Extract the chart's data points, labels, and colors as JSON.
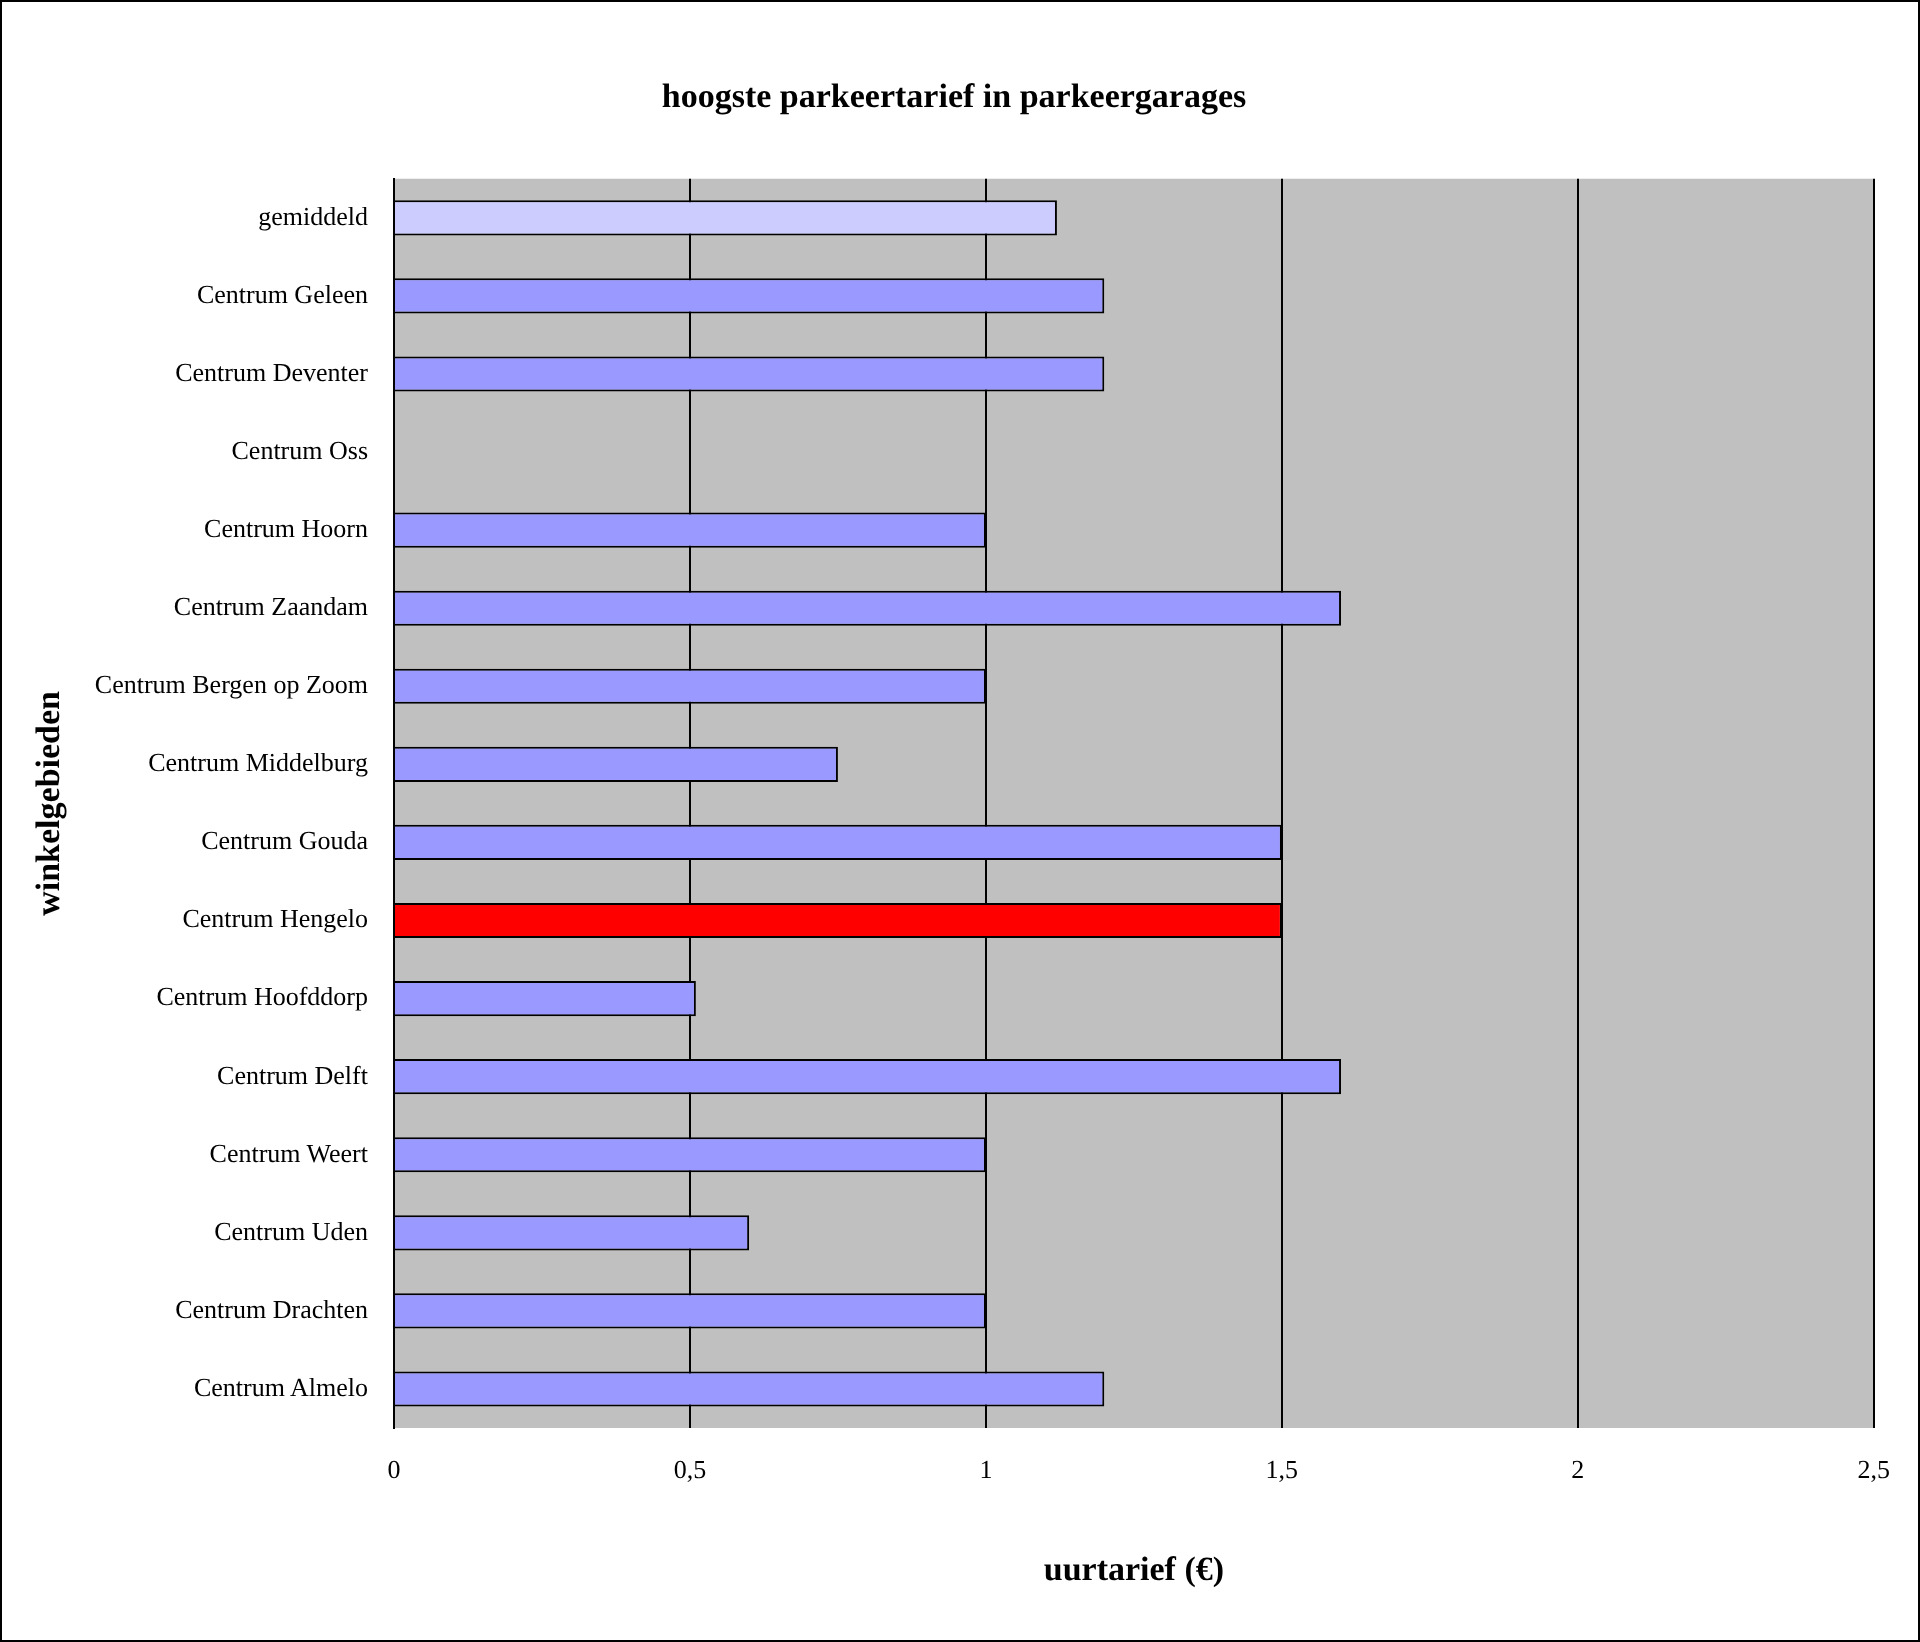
{
  "chart_data": {
    "type": "bar",
    "orientation": "horizontal",
    "title": "hoogste parkeertarief in parkeergarages",
    "xlabel": "uurtarief (€)",
    "ylabel": "winkelgebieden",
    "categories": [
      "gemiddeld",
      "Centrum Geleen",
      "Centrum Deventer",
      "Centrum Oss",
      "Centrum Hoorn",
      "Centrum Zaandam",
      "Centrum Bergen op Zoom",
      "Centrum Middelburg",
      "Centrum Gouda",
      "Centrum Hengelo",
      "Centrum Hoofddorp",
      "Centrum Delft",
      "Centrum Weert",
      "Centrum Uden",
      "Centrum Drachten",
      "Centrum Almelo"
    ],
    "values": [
      1.12,
      1.2,
      1.2,
      null,
      1.0,
      1.6,
      1.0,
      0.75,
      1.5,
      1.5,
      0.51,
      1.6,
      1.0,
      0.6,
      1.0,
      1.2
    ],
    "colors": [
      "#ccccff",
      "#9999ff",
      "#9999ff",
      "#9999ff",
      "#9999ff",
      "#9999ff",
      "#9999ff",
      "#9999ff",
      "#9999ff",
      "#ff0000",
      "#9999ff",
      "#9999ff",
      "#9999ff",
      "#9999ff",
      "#9999ff",
      "#9999ff"
    ],
    "xlim": [
      0,
      2.5
    ],
    "xticks": [
      {
        "value": 0,
        "label": "0"
      },
      {
        "value": 0.5,
        "label": "0,5"
      },
      {
        "value": 1,
        "label": "1"
      },
      {
        "value": 1.5,
        "label": "1,5"
      },
      {
        "value": 2,
        "label": "2"
      },
      {
        "value": 2.5,
        "label": "2,5"
      }
    ],
    "grid": "x",
    "legend": false
  }
}
